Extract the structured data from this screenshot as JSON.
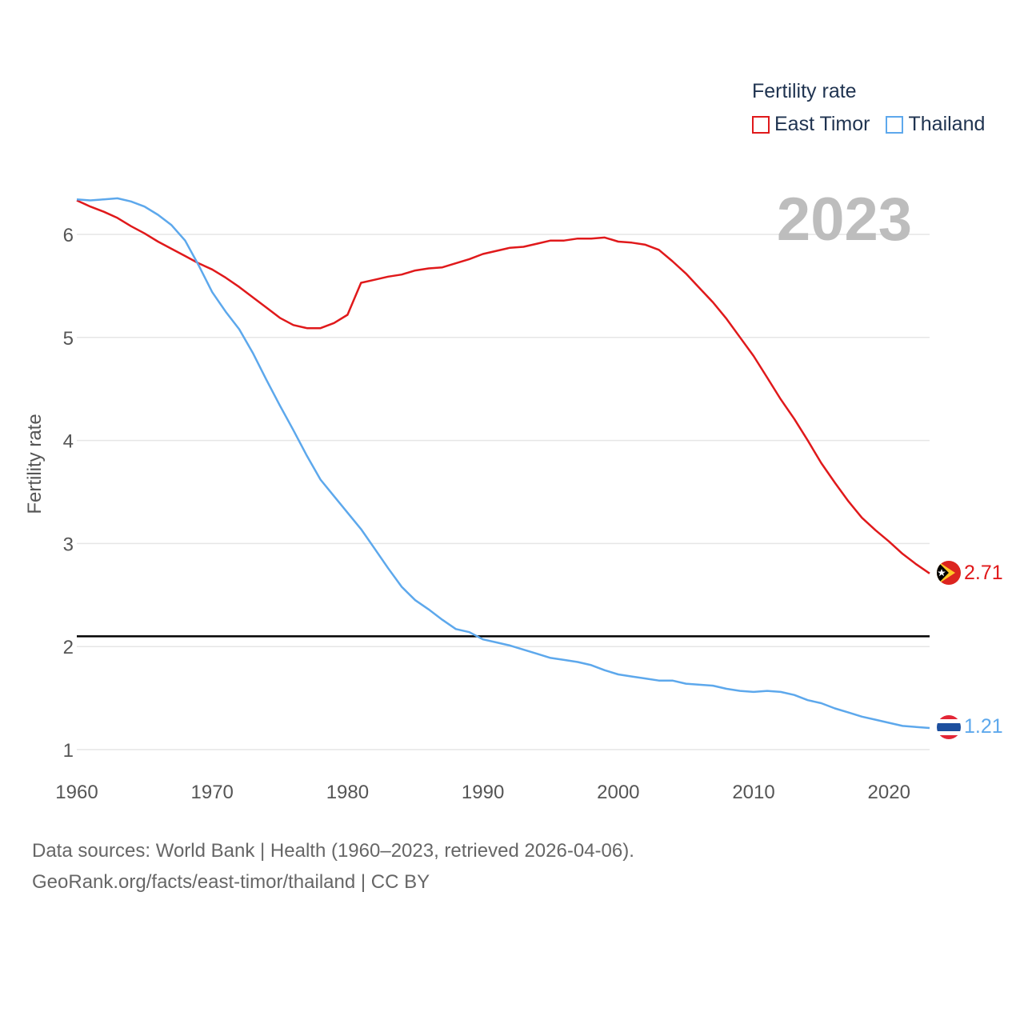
{
  "chart_data": {
    "type": "line",
    "title": "",
    "ylabel": "Fertility rate",
    "xlabel": "",
    "ylim": [
      0.8,
      6.5
    ],
    "xlim": [
      1960,
      2023
    ],
    "yticks": [
      1,
      2,
      3,
      4,
      5,
      6
    ],
    "xticks": [
      1960,
      1970,
      1980,
      1990,
      2000,
      2010,
      2020
    ],
    "year_label": "2023",
    "reference_line": 2.1,
    "legend": {
      "title": "Fertility rate",
      "position": "top-right"
    },
    "x": [
      1960,
      1961,
      1962,
      1963,
      1964,
      1965,
      1966,
      1967,
      1968,
      1969,
      1970,
      1971,
      1972,
      1973,
      1974,
      1975,
      1976,
      1977,
      1978,
      1979,
      1980,
      1981,
      1982,
      1983,
      1984,
      1985,
      1986,
      1987,
      1988,
      1989,
      1990,
      1991,
      1992,
      1993,
      1994,
      1995,
      1996,
      1997,
      1998,
      1999,
      2000,
      2001,
      2002,
      2003,
      2004,
      2005,
      2006,
      2007,
      2008,
      2009,
      2010,
      2011,
      2012,
      2013,
      2014,
      2015,
      2016,
      2017,
      2018,
      2019,
      2020,
      2021,
      2022,
      2023
    ],
    "series": [
      {
        "name": "East Timor",
        "color": "#e0191b",
        "end_label": "2.71",
        "values": [
          6.33,
          6.27,
          6.22,
          6.16,
          6.08,
          6.01,
          5.93,
          5.86,
          5.79,
          5.72,
          5.66,
          5.58,
          5.49,
          5.39,
          5.29,
          5.19,
          5.12,
          5.09,
          5.09,
          5.14,
          5.22,
          5.53,
          5.56,
          5.59,
          5.61,
          5.65,
          5.67,
          5.68,
          5.72,
          5.76,
          5.81,
          5.84,
          5.87,
          5.88,
          5.91,
          5.94,
          5.94,
          5.96,
          5.96,
          5.97,
          5.93,
          5.92,
          5.9,
          5.85,
          5.74,
          5.62,
          5.48,
          5.34,
          5.18,
          5.0,
          4.82,
          4.61,
          4.4,
          4.21,
          4.0,
          3.78,
          3.59,
          3.41,
          3.25,
          3.13,
          3.02,
          2.9,
          2.8,
          2.71
        ]
      },
      {
        "name": "Thailand",
        "color": "#5da8ec",
        "end_label": "1.21",
        "values": [
          6.34,
          6.33,
          6.34,
          6.35,
          6.32,
          6.27,
          6.19,
          6.09,
          5.94,
          5.7,
          5.44,
          5.25,
          5.08,
          4.85,
          4.59,
          4.34,
          4.1,
          3.85,
          3.62,
          3.46,
          3.3,
          3.14,
          2.95,
          2.76,
          2.58,
          2.45,
          2.36,
          2.26,
          2.17,
          2.14,
          2.07,
          2.04,
          2.01,
          1.97,
          1.93,
          1.89,
          1.87,
          1.85,
          1.82,
          1.77,
          1.73,
          1.71,
          1.69,
          1.67,
          1.67,
          1.64,
          1.63,
          1.62,
          1.59,
          1.57,
          1.56,
          1.57,
          1.56,
          1.53,
          1.48,
          1.45,
          1.4,
          1.36,
          1.32,
          1.29,
          1.26,
          1.23,
          1.22,
          1.21
        ]
      }
    ]
  },
  "legend_labels": {
    "title": "Fertility rate",
    "east_timor": "East Timor",
    "thailand": "Thailand"
  },
  "footer": {
    "line1": "Data sources: World Bank | Health (1960–2023, retrieved 2026-04-06).",
    "line2": "GeoRank.org/facts/east-timor/thailand | CC BY"
  },
  "colors": {
    "east_timor": "#e0191b",
    "thailand": "#5da8ec",
    "grid": "#e6e6e6",
    "year_label": "#bdbdbd",
    "axis_text": "#555555"
  }
}
